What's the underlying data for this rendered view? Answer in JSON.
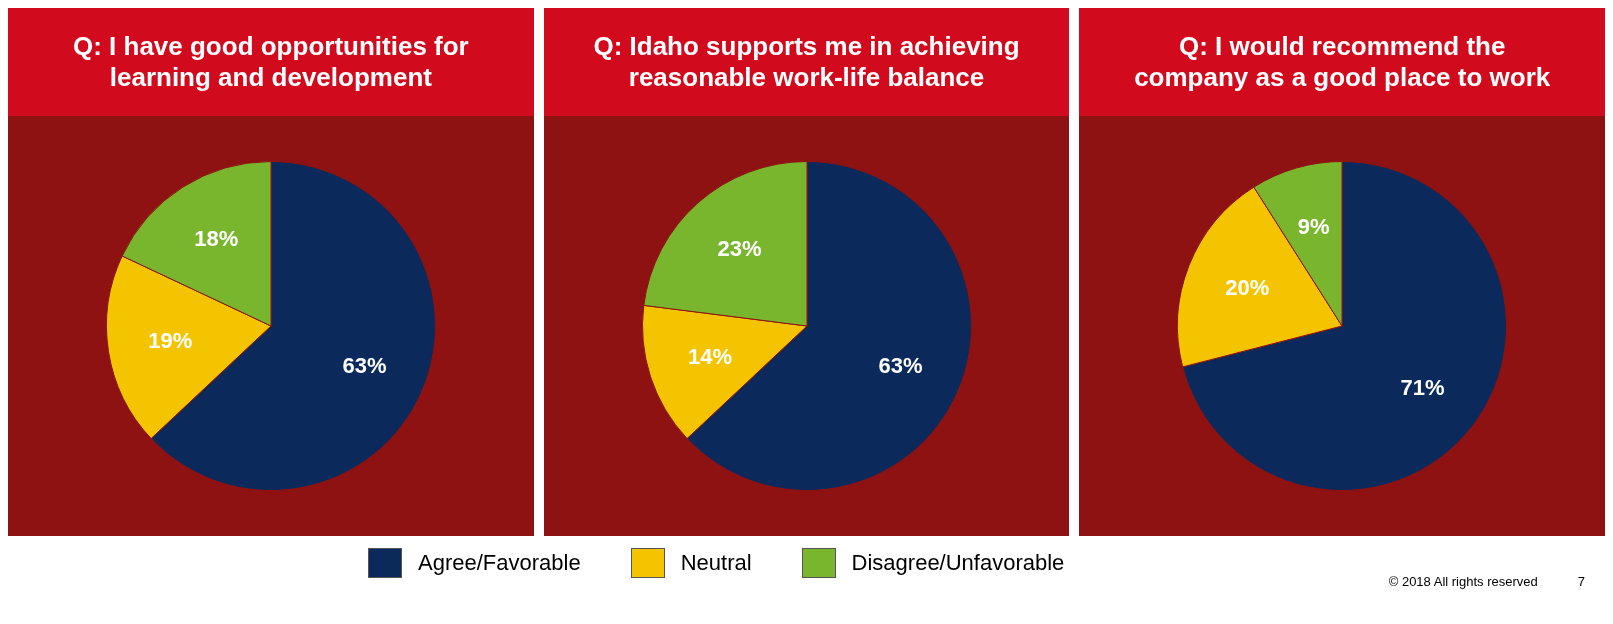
{
  "chart_data": [
    {
      "type": "pie",
      "title": "Q:  I have good opportunities for learning and development",
      "categories": [
        "Agree/Favorable",
        "Neutral",
        "Disagree/Unfavorable"
      ],
      "values": [
        63,
        19,
        18
      ],
      "colors": [
        "#0b2a5b",
        "#f5c400",
        "#7ab62d"
      ],
      "value_labels": [
        "63%",
        "19%",
        "18%"
      ],
      "legend": "bottom"
    },
    {
      "type": "pie",
      "title": "Q:  Idaho supports me in achieving reasonable work-life balance",
      "categories": [
        null,
        null,
        null
      ],
      "values": [
        63,
        14,
        23
      ],
      "colors": [
        "#0b2a5b",
        "#f5c400",
        "#7ab62d"
      ],
      "value_labels": [
        "63%",
        "14%",
        "23%"
      ]
    },
    {
      "type": "pie",
      "title": "Q:  I would recommend the company as a good place to work",
      "categories": [
        null,
        null,
        null
      ],
      "values": [
        71,
        20,
        9
      ],
      "colors": [
        "#0b2a5b",
        "#f5c400",
        "#7ab62d"
      ],
      "value_labels": [
        "71%",
        "20%",
        "9%"
      ],
      "annotations": [
        "© 2018 All rights reserved",
        "7"
      ]
    }
  ]
}
